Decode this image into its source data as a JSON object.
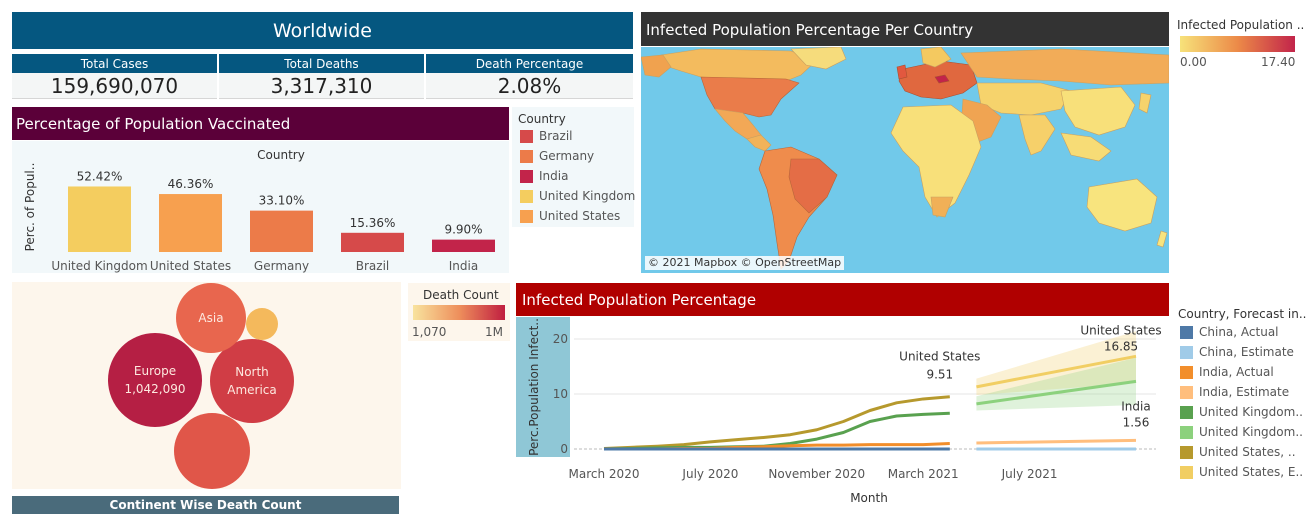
{
  "worldwide": {
    "title": "Worldwide",
    "total_cases_label": "Total Cases",
    "total_cases": "159,690,070",
    "total_deaths_label": "Total Deaths",
    "total_deaths": "3,317,310",
    "death_pct_label": "Death Percentage",
    "death_pct": "2.08%"
  },
  "vaccination": {
    "title": "Percentage of Population Vaccinated",
    "legend_title": "Country",
    "legend": [
      {
        "name": "Brazil",
        "color": "#d64a4a"
      },
      {
        "name": "Germany",
        "color": "#ec7b49"
      },
      {
        "name": "India",
        "color": "#c2244a"
      },
      {
        "name": "United Kingdom",
        "color": "#f4cd5f"
      },
      {
        "name": "United States",
        "color": "#f7a04f"
      }
    ]
  },
  "map": {
    "title": "Infected Population Percentage Per Country",
    "attribution": "© 2021 Mapbox © OpenStreetMap",
    "legend_title": "Infected Population ..",
    "legend_min": "0.00",
    "legend_max": "17.40"
  },
  "bubbles": {
    "footer": "Continent Wise Death Count",
    "legend_title": "Death Count",
    "legend_min": "1,070",
    "legend_max": "1M"
  },
  "line": {
    "title": "Infected Population Percentage",
    "legend_title": "Country, Forecast in..",
    "legend": [
      {
        "name": "China, Actual",
        "color": "#4e79a7"
      },
      {
        "name": "China, Estimate",
        "color": "#a0cbe8"
      },
      {
        "name": "India, Actual",
        "color": "#f28e2b"
      },
      {
        "name": "India, Estimate",
        "color": "#ffbe7d"
      },
      {
        "name": "United Kingdom..",
        "color": "#59a14f"
      },
      {
        "name": "United Kingdom..",
        "color": "#8cd17d"
      },
      {
        "name": "United States, ..",
        "color": "#b6992d"
      },
      {
        "name": "United States, E..",
        "color": "#f1ce63"
      }
    ]
  },
  "chart_data": [
    {
      "type": "bar",
      "title": "",
      "xlabel": "Country",
      "ylabel": "Perc. of Popul..",
      "categories": [
        "United Kingdom",
        "United States",
        "Germany",
        "Brazil",
        "India"
      ],
      "values": [
        52.42,
        46.36,
        33.1,
        15.36,
        9.9
      ],
      "value_labels": [
        "52.42%",
        "46.36%",
        "33.10%",
        "15.36%",
        "9.90%"
      ],
      "colors": [
        "#f4cd5f",
        "#f7a04f",
        "#ec7b49",
        "#d64a4a",
        "#c2244a"
      ],
      "ylim": [
        0,
        60
      ]
    },
    {
      "type": "scatter",
      "subtype": "packed-bubble",
      "bubbles": [
        {
          "label": "Europe",
          "value_label": "1,042,090",
          "value": 1042090,
          "color": "#b51f44"
        },
        {
          "label": "North America",
          "value_label": "",
          "value": 800000,
          "color": "#d03d45"
        },
        {
          "label": "",
          "value_label": "",
          "value": 660000,
          "color": "#e05649"
        },
        {
          "label": "Asia",
          "value_label": "",
          "value": 520000,
          "color": "#e8664e"
        },
        {
          "label": "",
          "value_label": "",
          "value": 30000,
          "color": "#f4b95c"
        }
      ]
    },
    {
      "type": "line",
      "title": "",
      "xlabel": "Month",
      "ylabel": "Perc.Population Infect..",
      "x_ticks": [
        "March 2020",
        "July 2020",
        "November 2020",
        "March 2021",
        "July 2021"
      ],
      "y_ticks": [
        0,
        10,
        20
      ],
      "ylim": [
        0,
        22
      ],
      "months": [
        "2020-03",
        "2020-04",
        "2020-05",
        "2020-06",
        "2020-07",
        "2020-08",
        "2020-09",
        "2020-10",
        "2020-11",
        "2020-12",
        "2021-01",
        "2021-02",
        "2021-03",
        "2021-04",
        "2021-05",
        "2021-06",
        "2021-07",
        "2021-08",
        "2021-09",
        "2021-10",
        "2021-11"
      ],
      "series": [
        {
          "name": "United States, Actual",
          "color": "#b6992d",
          "x": [
            "2020-03",
            "2020-04",
            "2020-05",
            "2020-06",
            "2020-07",
            "2020-08",
            "2020-09",
            "2020-10",
            "2020-11",
            "2020-12",
            "2021-01",
            "2021-02",
            "2021-03",
            "2021-04"
          ],
          "values": [
            0.1,
            0.3,
            0.5,
            0.8,
            1.3,
            1.7,
            2.1,
            2.6,
            3.5,
            5.0,
            7.0,
            8.4,
            9.1,
            9.51
          ]
        },
        {
          "name": "United Kingdom, Actual",
          "color": "#59a14f",
          "x": [
            "2020-03",
            "2020-04",
            "2020-05",
            "2020-06",
            "2020-07",
            "2020-08",
            "2020-09",
            "2020-10",
            "2020-11",
            "2020-12",
            "2021-01",
            "2021-02",
            "2021-03",
            "2021-04"
          ],
          "values": [
            0.0,
            0.1,
            0.2,
            0.3,
            0.3,
            0.4,
            0.5,
            1.0,
            1.8,
            3.0,
            5.0,
            6.0,
            6.3,
            6.5
          ]
        },
        {
          "name": "India, Actual",
          "color": "#f28e2b",
          "x": [
            "2020-03",
            "2020-04",
            "2020-05",
            "2020-06",
            "2020-07",
            "2020-08",
            "2020-09",
            "2020-10",
            "2020-11",
            "2020-12",
            "2021-01",
            "2021-02",
            "2021-03",
            "2021-04"
          ],
          "values": [
            0.0,
            0.0,
            0.0,
            0.1,
            0.1,
            0.3,
            0.4,
            0.6,
            0.7,
            0.7,
            0.8,
            0.8,
            0.8,
            1.0
          ]
        },
        {
          "name": "China, Actual",
          "color": "#4e79a7",
          "x": [
            "2020-03",
            "2020-04",
            "2020-05",
            "2020-06",
            "2020-07",
            "2020-08",
            "2020-09",
            "2020-10",
            "2020-11",
            "2020-12",
            "2021-01",
            "2021-02",
            "2021-03",
            "2021-04"
          ],
          "values": [
            0.01,
            0.01,
            0.01,
            0.01,
            0.01,
            0.01,
            0.01,
            0.01,
            0.01,
            0.01,
            0.01,
            0.01,
            0.01,
            0.01
          ]
        },
        {
          "name": "United States, Estimate",
          "color": "#f1ce63",
          "x": [
            "2021-05",
            "2021-11"
          ],
          "values": [
            11.3,
            16.85
          ],
          "band_low": [
            9.8,
            12.0
          ],
          "band_high": [
            12.8,
            21.4
          ]
        },
        {
          "name": "United Kingdom, Estimate",
          "color": "#8cd17d",
          "x": [
            "2021-05",
            "2021-11"
          ],
          "values": [
            8.2,
            12.3
          ],
          "band_low": [
            7.0,
            8.0
          ],
          "band_high": [
            9.6,
            16.6
          ]
        },
        {
          "name": "India, Estimate",
          "color": "#ffbe7d",
          "x": [
            "2021-05",
            "2021-11"
          ],
          "values": [
            1.1,
            1.56
          ]
        },
        {
          "name": "China, Estimate",
          "color": "#a0cbe8",
          "x": [
            "2021-05",
            "2021-11"
          ],
          "values": [
            0.01,
            0.01
          ]
        }
      ],
      "annotations": [
        {
          "series": "United States, Actual",
          "text1": "United States",
          "text2": "9.51"
        },
        {
          "series": "United States, Estimate",
          "text1": "United States",
          "text2": "16.85"
        },
        {
          "series": "India, Estimate",
          "text1": "India",
          "text2": "1.56"
        }
      ]
    }
  ]
}
